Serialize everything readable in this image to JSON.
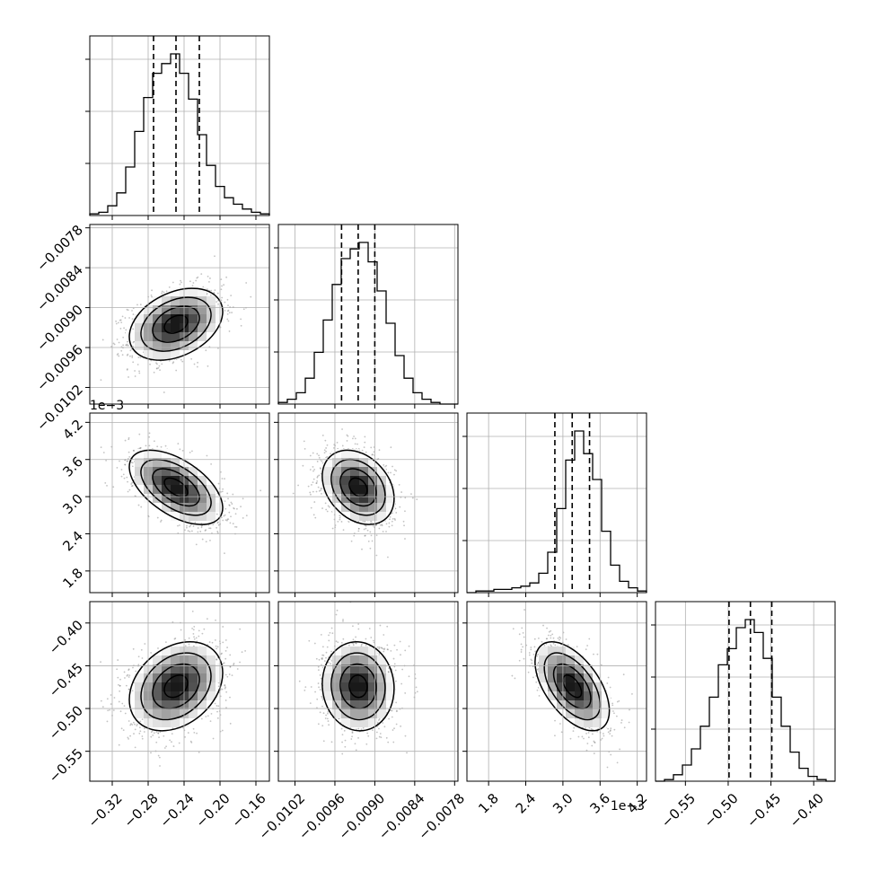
{
  "chart_data": {
    "type": "corner",
    "grid": true,
    "colors": {
      "hist": "#000000",
      "contour": "#000000",
      "points": "#7a7a7a",
      "grid": "#b0b0b0",
      "quantile": "#000000"
    },
    "params": [
      {
        "range": [
          -0.345,
          -0.145
        ],
        "ticks": [
          -0.32,
          -0.28,
          -0.24,
          -0.2,
          -0.16
        ],
        "tick_labels": [
          "−0.32",
          "−0.28",
          "−0.24",
          "−0.20",
          "−0.16"
        ],
        "offset_label": "",
        "quantiles": [
          -0.274,
          -0.249,
          -0.223
        ],
        "mean": -0.249,
        "sd": 0.026
      },
      {
        "range": [
          -0.01045,
          -0.00775
        ],
        "ticks": [
          -0.0102,
          -0.0096,
          -0.009,
          -0.0084,
          -0.0078
        ],
        "tick_labels": [
          "−0.0102",
          "−0.0096",
          "−0.0090",
          "−0.0084",
          "−0.0078"
        ],
        "offset_label": "",
        "quantiles": [
          -0.0095,
          -0.00925,
          -0.009
        ],
        "mean": -0.00925,
        "sd": 0.00027
      },
      {
        "range": [
          1.45,
          4.35
        ],
        "ticks": [
          1.8,
          2.4,
          3.0,
          3.6,
          4.2
        ],
        "tick_labels": [
          "1.8",
          "2.4",
          "3.0",
          "3.6",
          "4.2"
        ],
        "offset_label": "1e−3",
        "quantiles": [
          2.87,
          3.15,
          3.43
        ],
        "mean": 3.15,
        "sd": 0.3
      },
      {
        "range": [
          -0.585,
          -0.375
        ],
        "ticks": [
          -0.55,
          -0.5,
          -0.45,
          -0.4
        ],
        "tick_labels": [
          "−0.55",
          "−0.50",
          "−0.45",
          "−0.40"
        ],
        "offset_label": "",
        "quantiles": [
          -0.499,
          -0.474,
          -0.449
        ],
        "mean": -0.474,
        "sd": 0.026
      }
    ],
    "correlations": [
      {
        "i": 1,
        "j": 0,
        "rho": 0.35
      },
      {
        "i": 2,
        "j": 0,
        "rho": -0.55
      },
      {
        "i": 2,
        "j": 1,
        "rho": -0.3
      },
      {
        "i": 3,
        "j": 0,
        "rho": 0.3
      },
      {
        "i": 3,
        "j": 1,
        "rho": -0.05
      },
      {
        "i": 3,
        "j": 2,
        "rho": -0.55
      }
    ],
    "histograms": [
      {
        "param": 0,
        "heights": [
          0.01,
          0.02,
          0.06,
          0.14,
          0.3,
          0.52,
          0.73,
          0.88,
          0.94,
          1.0,
          0.88,
          0.72,
          0.5,
          0.31,
          0.18,
          0.11,
          0.07,
          0.04,
          0.02,
          0.01
        ]
      },
      {
        "param": 1,
        "heights": [
          0.01,
          0.03,
          0.07,
          0.16,
          0.32,
          0.52,
          0.74,
          0.9,
          0.96,
          1.0,
          0.88,
          0.7,
          0.5,
          0.3,
          0.16,
          0.07,
          0.03,
          0.01,
          0.0,
          0.0
        ]
      },
      {
        "param": 2,
        "heights": [
          0.0,
          0.01,
          0.01,
          0.02,
          0.02,
          0.03,
          0.04,
          0.06,
          0.12,
          0.25,
          0.52,
          0.82,
          1.0,
          0.86,
          0.7,
          0.38,
          0.17,
          0.07,
          0.03,
          0.01
        ]
      },
      {
        "param": 3,
        "heights": [
          0.0,
          0.01,
          0.04,
          0.1,
          0.2,
          0.34,
          0.52,
          0.72,
          0.82,
          0.95,
          1.0,
          0.92,
          0.76,
          0.52,
          0.34,
          0.18,
          0.08,
          0.03,
          0.01,
          0.0
        ]
      }
    ],
    "contour_levels_sigma": [
      0.5,
      1.0,
      1.5,
      2.0
    ]
  }
}
